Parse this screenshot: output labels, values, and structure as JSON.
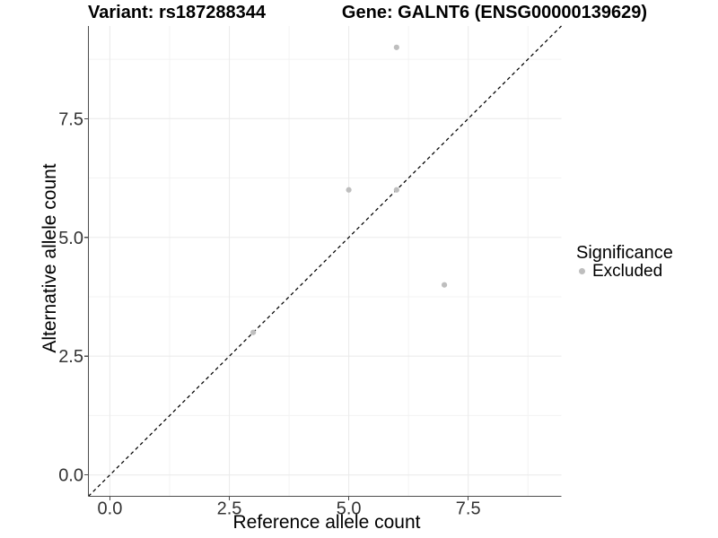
{
  "titles": {
    "variant": "Variant: rs187288344",
    "gene": "Gene: GALNT6 (ENSG00000139629)"
  },
  "chart_data": {
    "type": "scatter",
    "title": "Variant: rs187288344 — Gene: GALNT6 (ENSG00000139629)",
    "xlabel": "Reference allele count",
    "ylabel": "Alternative allele count",
    "xlim": [
      -0.45,
      9.45
    ],
    "ylim": [
      -0.45,
      9.45
    ],
    "x_ticks": {
      "values": [
        0,
        2.5,
        5,
        7.5
      ],
      "labels": [
        "0.0",
        "2.5",
        "5.0",
        "7.5"
      ]
    },
    "y_ticks": {
      "values": [
        0,
        2.5,
        5,
        7.5
      ],
      "labels": [
        "0.0",
        "2.5",
        "5.0",
        "7.5"
      ]
    },
    "minor_gridlines": [
      1.25,
      3.75,
      6.25,
      8.75
    ],
    "grid": "major+minor",
    "identity_line": {
      "slope": 1,
      "intercept": 0,
      "style": "dashed",
      "color": "#000000"
    },
    "series": [
      {
        "name": "Excluded",
        "color": "#bebebe",
        "points": [
          {
            "x": 3,
            "y": 3
          },
          {
            "x": 5,
            "y": 6
          },
          {
            "x": 6,
            "y": 6
          },
          {
            "x": 6,
            "y": 9
          },
          {
            "x": 7,
            "y": 4
          }
        ]
      }
    ],
    "legend": {
      "title": "Significance",
      "position": "right",
      "entries": [
        {
          "label": "Excluded",
          "color": "#bebebe"
        }
      ]
    }
  },
  "colors": {
    "background": "#ffffff",
    "grid_major": "#ebebeb",
    "grid_minor": "#f3f3f3",
    "axis_line": "#4d4d4d",
    "tick_mark": "#4d4d4d",
    "tick_text": "#333333",
    "point": "#bebebe",
    "identity_line": "#000000"
  }
}
